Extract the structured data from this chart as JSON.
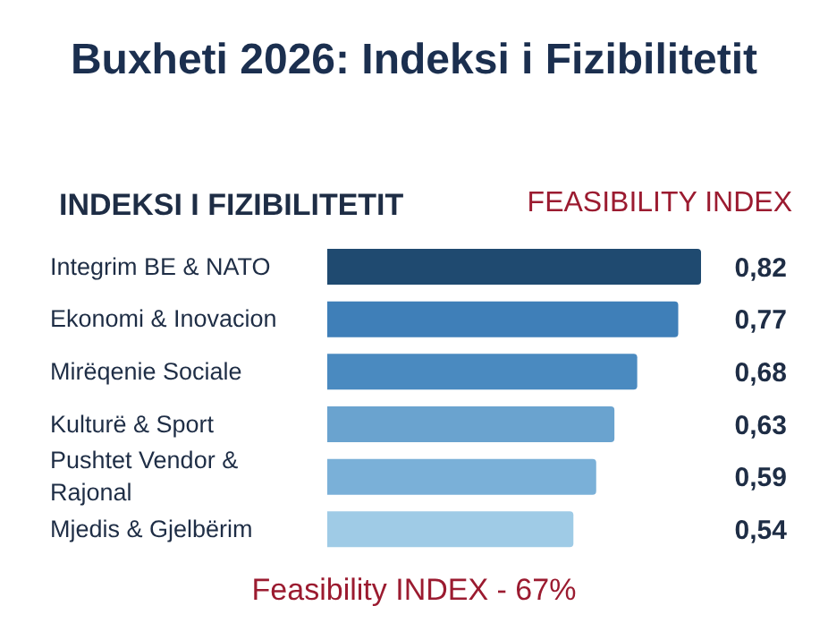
{
  "chart_data": {
    "type": "bar",
    "orientation": "horizontal",
    "title": "Buxheti 2026: Indeksi i Fizibilitetit",
    "subtitle": "INDEKSI I FIZIBILITETIT",
    "annotations": [
      "FEASIBILITY INDEX",
      "Feasibility INDEX - 67%"
    ],
    "categories": [
      "Integrim BE & NATO",
      "Ekonomi & Inovacion",
      "Mirëqenie Sociale",
      "Kulturë & Sport",
      "Pushtet Vendor & Rajonal",
      "Mjedis & Gjelbërim"
    ],
    "values": [
      0.82,
      0.77,
      0.68,
      0.63,
      0.59,
      0.54
    ],
    "colors": [
      "#1f4a70",
      "#3f7fb8",
      "#4a8ac0",
      "#6aa3cf",
      "#7ab0d8",
      "#9fcbe6"
    ],
    "value_labels": [
      "0,82",
      "0,77",
      "0,68",
      "0,63",
      "0,59",
      "0,54"
    ]
  }
}
